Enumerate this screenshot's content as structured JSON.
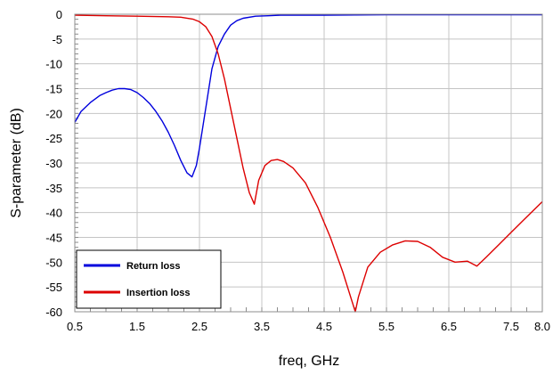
{
  "chart_data": {
    "type": "line",
    "title": "",
    "xlabel": "freq, GHz",
    "ylabel": "S-parameter (dB)",
    "xlim": [
      0.5,
      8.0
    ],
    "ylim": [
      -60,
      0
    ],
    "xticks": [
      0.5,
      1.5,
      2.5,
      3.5,
      4.5,
      5.5,
      6.5,
      7.5,
      8.0
    ],
    "xtick_labels": [
      "0.5",
      "1.5",
      "2.5",
      "3.5",
      "4.5",
      "5.5",
      "6.5",
      "7.5",
      "8.0"
    ],
    "yticks": [
      0,
      -5,
      -10,
      -15,
      -20,
      -25,
      -30,
      -35,
      -40,
      -45,
      -50,
      -55,
      -60
    ],
    "ytick_labels": [
      "0",
      "-5",
      "-10",
      "-15",
      "-20",
      "-25",
      "-30",
      "-35",
      "-40",
      "-45",
      "-50",
      "-55",
      "-60"
    ],
    "grid": true,
    "legend_position": "bottom-left",
    "series": [
      {
        "name": "Return loss",
        "color": "#0000dd",
        "x": [
          0.5,
          0.6,
          0.75,
          0.9,
          1.0,
          1.1,
          1.2,
          1.3,
          1.4,
          1.5,
          1.6,
          1.7,
          1.8,
          1.9,
          2.0,
          2.1,
          2.2,
          2.3,
          2.38,
          2.45,
          2.5,
          2.6,
          2.7,
          2.8,
          2.9,
          3.0,
          3.1,
          3.2,
          3.4,
          3.6,
          3.8,
          4.0,
          4.5,
          5.0,
          5.5,
          6.0,
          6.5,
          7.0,
          7.5,
          8.0
        ],
        "y": [
          -21.8,
          -19.6,
          -17.8,
          -16.4,
          -15.8,
          -15.3,
          -15.0,
          -15.0,
          -15.2,
          -15.8,
          -16.8,
          -18.0,
          -19.6,
          -21.5,
          -23.8,
          -26.5,
          -29.5,
          -32.0,
          -32.8,
          -30.5,
          -27.0,
          -19.0,
          -11.0,
          -6.5,
          -4.0,
          -2.2,
          -1.3,
          -0.8,
          -0.4,
          -0.3,
          -0.2,
          -0.2,
          -0.2,
          -0.15,
          -0.1,
          -0.1,
          -0.1,
          -0.1,
          -0.1,
          -0.1
        ]
      },
      {
        "name": "Insertion loss",
        "color": "#dd0000",
        "x": [
          0.5,
          1.0,
          1.5,
          2.0,
          2.2,
          2.4,
          2.5,
          2.6,
          2.7,
          2.8,
          2.9,
          3.0,
          3.1,
          3.2,
          3.3,
          3.38,
          3.45,
          3.55,
          3.65,
          3.75,
          3.85,
          4.0,
          4.2,
          4.4,
          4.6,
          4.8,
          4.95,
          5.0,
          5.05,
          5.2,
          5.4,
          5.6,
          5.8,
          6.0,
          6.2,
          6.4,
          6.6,
          6.8,
          6.95,
          7.1,
          7.3,
          7.5,
          7.7,
          8.0
        ],
        "y": [
          -0.2,
          -0.3,
          -0.4,
          -0.5,
          -0.6,
          -1.0,
          -1.5,
          -2.5,
          -4.5,
          -8.0,
          -13.0,
          -19.0,
          -25.0,
          -31.0,
          -36.0,
          -38.3,
          -33.5,
          -30.5,
          -29.5,
          -29.3,
          -29.7,
          -31.0,
          -34.0,
          -39.0,
          -45.0,
          -52.0,
          -58.0,
          -60.0,
          -57.0,
          -51.0,
          -48.0,
          -46.5,
          -45.7,
          -45.8,
          -47.0,
          -49.0,
          -50.0,
          -49.8,
          -50.8,
          -49.0,
          -46.5,
          -44.0,
          -41.5,
          -37.8
        ]
      }
    ]
  }
}
